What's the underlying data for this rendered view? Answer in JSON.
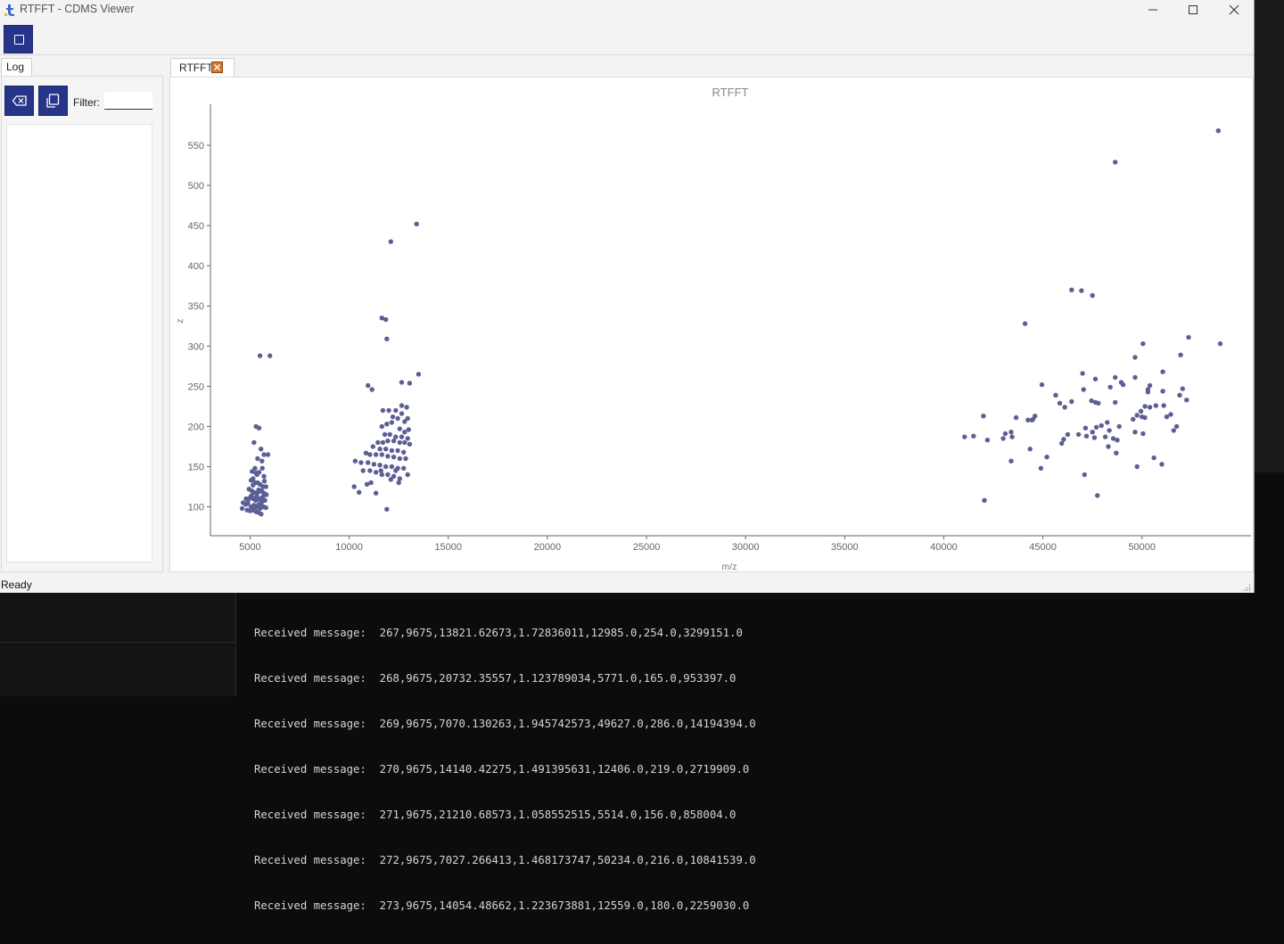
{
  "window": {
    "title": "RTFFT - CDMS Viewer"
  },
  "log": {
    "tab_label": "Log",
    "filter_label": "Filter:",
    "filter_value": ""
  },
  "plot_tab": {
    "label": "RTFFT"
  },
  "status": {
    "text": "Ready"
  },
  "terminal": {
    "lines": [
      "Received message:  267,9675,13821.62673,1.72836011,12985.0,254.0,3299151.0",
      "Received message:  268,9675,20732.35557,1.123789034,5771.0,165.0,953397.0",
      "Received message:  269,9675,7070.130263,1.945742573,49627.0,286.0,14194394.0",
      "Received message:  270,9675,14140.42275,1.491395631,12406.0,219.0,2719909.0",
      "Received message:  271,9675,21210.68573,1.058552515,5514.0,156.0,858004.0",
      "Received message:  272,9675,7027.266413,1.468173747,50234.0,216.0,10841539.0",
      "Received message:  273,9675,14054.48662,1.223673881,12559.0,180.0,2259030.0"
    ]
  },
  "colors": {
    "accent": "#26358a",
    "point": "#5c5f94",
    "close_button": "#d9762b"
  },
  "chart_data": {
    "type": "scatter",
    "title": "RTFFT",
    "xlabel": "m/z",
    "ylabel": "z",
    "xlim": [
      3000,
      55500
    ],
    "ylim": [
      64,
      601
    ],
    "xticks": [
      5000,
      10000,
      15000,
      20000,
      25000,
      30000,
      35000,
      40000,
      45000,
      50000
    ],
    "yticks": [
      100,
      150,
      200,
      250,
      300,
      350,
      400,
      450,
      500,
      550
    ],
    "grid": false,
    "points": [
      [
        5500,
        288
      ],
      [
        6000,
        288
      ],
      [
        5300,
        200
      ],
      [
        5450,
        198
      ],
      [
        5200,
        180
      ],
      [
        5550,
        172
      ],
      [
        5700,
        165
      ],
      [
        5900,
        165
      ],
      [
        5380,
        160
      ],
      [
        5600,
        157
      ],
      [
        5250,
        148
      ],
      [
        5100,
        144
      ],
      [
        5450,
        143
      ],
      [
        5350,
        140
      ],
      [
        5700,
        138
      ],
      [
        5050,
        133
      ],
      [
        5150,
        135
      ],
      [
        5250,
        130
      ],
      [
        5500,
        128
      ],
      [
        5650,
        125
      ],
      [
        5800,
        125
      ],
      [
        4950,
        122
      ],
      [
        5080,
        120
      ],
      [
        5200,
        118
      ],
      [
        5350,
        117
      ],
      [
        5480,
        119
      ],
      [
        5580,
        120
      ],
      [
        5700,
        117
      ],
      [
        5820,
        115
      ],
      [
        4800,
        110
      ],
      [
        4900,
        108
      ],
      [
        5020,
        112
      ],
      [
        5150,
        110
      ],
      [
        5280,
        108
      ],
      [
        5400,
        109
      ],
      [
        5520,
        110
      ],
      [
        5630,
        112
      ],
      [
        5750,
        108
      ],
      [
        4650,
        105
      ],
      [
        4780,
        103
      ],
      [
        4890,
        104
      ],
      [
        5050,
        100
      ],
      [
        5200,
        102
      ],
      [
        5330,
        101
      ],
      [
        5450,
        103
      ],
      [
        5560,
        104
      ],
      [
        5680,
        100
      ],
      [
        5800,
        99
      ],
      [
        4600,
        98
      ],
      [
        4850,
        96
      ],
      [
        5000,
        95
      ],
      [
        5150,
        96
      ],
      [
        5300,
        94
      ],
      [
        5420,
        93
      ],
      [
        5560,
        91
      ],
      [
        5300,
        142
      ],
      [
        5380,
        130
      ],
      [
        5150,
        127
      ],
      [
        5620,
        148
      ],
      [
        5720,
        132
      ],
      [
        5430,
        121
      ],
      [
        5080,
        114
      ],
      [
        5340,
        113
      ],
      [
        5610,
        107
      ],
      [
        5260,
        97
      ],
      [
        5510,
        98
      ],
      [
        13400,
        452
      ],
      [
        12100,
        430
      ],
      [
        11650,
        335
      ],
      [
        11850,
        333
      ],
      [
        11900,
        309
      ],
      [
        13500,
        265
      ],
      [
        10950,
        251
      ],
      [
        11150,
        246
      ],
      [
        12650,
        255
      ],
      [
        13050,
        254
      ],
      [
        12650,
        226
      ],
      [
        12900,
        224
      ],
      [
        11700,
        220
      ],
      [
        12000,
        220
      ],
      [
        12350,
        220
      ],
      [
        12650,
        216
      ],
      [
        12200,
        212
      ],
      [
        12450,
        210
      ],
      [
        12950,
        210
      ],
      [
        12150,
        205
      ],
      [
        12800,
        206
      ],
      [
        11650,
        200
      ],
      [
        11900,
        203
      ],
      [
        12550,
        197
      ],
      [
        12800,
        193
      ],
      [
        13000,
        196
      ],
      [
        11800,
        190
      ],
      [
        12050,
        190
      ],
      [
        12350,
        187
      ],
      [
        12650,
        187
      ],
      [
        12950,
        185
      ],
      [
        11450,
        180
      ],
      [
        11700,
        180
      ],
      [
        11950,
        182
      ],
      [
        12250,
        182
      ],
      [
        12550,
        180
      ],
      [
        12800,
        180
      ],
      [
        13050,
        178
      ],
      [
        11200,
        175
      ],
      [
        11550,
        172
      ],
      [
        11850,
        172
      ],
      [
        12150,
        170
      ],
      [
        12450,
        170
      ],
      [
        12750,
        168
      ],
      [
        10850,
        167
      ],
      [
        11050,
        165
      ],
      [
        11350,
        165
      ],
      [
        11650,
        165
      ],
      [
        11950,
        163
      ],
      [
        12250,
        162
      ],
      [
        12550,
        160
      ],
      [
        12850,
        160
      ],
      [
        10300,
        157
      ],
      [
        10600,
        155
      ],
      [
        10950,
        155
      ],
      [
        11250,
        153
      ],
      [
        11550,
        152
      ],
      [
        11850,
        150
      ],
      [
        12150,
        150
      ],
      [
        12450,
        148
      ],
      [
        12750,
        148
      ],
      [
        10700,
        145
      ],
      [
        11050,
        145
      ],
      [
        11350,
        143
      ],
      [
        11650,
        140
      ],
      [
        11950,
        140
      ],
      [
        12250,
        138
      ],
      [
        12550,
        135
      ],
      [
        12950,
        140
      ],
      [
        10250,
        125
      ],
      [
        10900,
        128
      ],
      [
        11100,
        130
      ],
      [
        12100,
        134
      ],
      [
        12500,
        130
      ],
      [
        10500,
        118
      ],
      [
        11350,
        117
      ],
      [
        11900,
        97
      ],
      [
        11600,
        145
      ],
      [
        12350,
        145
      ],
      [
        53850,
        568
      ],
      [
        48650,
        529
      ],
      [
        46450,
        370
      ],
      [
        46950,
        369
      ],
      [
        47500,
        363
      ],
      [
        44100,
        328
      ],
      [
        52350,
        311
      ],
      [
        50050,
        303
      ],
      [
        53950,
        303
      ],
      [
        51950,
        289
      ],
      [
        49650,
        286
      ],
      [
        51050,
        268
      ],
      [
        47000,
        266
      ],
      [
        48650,
        261
      ],
      [
        49650,
        261
      ],
      [
        47650,
        259
      ],
      [
        50400,
        251
      ],
      [
        48400,
        249
      ],
      [
        48950,
        255
      ],
      [
        49050,
        252
      ],
      [
        44950,
        252
      ],
      [
        50300,
        246
      ],
      [
        50300,
        243
      ],
      [
        51050,
        244
      ],
      [
        52050,
        247
      ],
      [
        51900,
        239
      ],
      [
        47050,
        246
      ],
      [
        52250,
        233
      ],
      [
        45650,
        239
      ],
      [
        46450,
        231
      ],
      [
        47450,
        232
      ],
      [
        47650,
        230
      ],
      [
        47800,
        229
      ],
      [
        48650,
        230
      ],
      [
        46100,
        224
      ],
      [
        45850,
        229
      ],
      [
        49950,
        219
      ],
      [
        50150,
        225
      ],
      [
        50400,
        224
      ],
      [
        51100,
        226
      ],
      [
        50700,
        226
      ],
      [
        49750,
        214
      ],
      [
        49550,
        209
      ],
      [
        50000,
        212
      ],
      [
        50150,
        211
      ],
      [
        51250,
        212
      ],
      [
        51450,
        215
      ],
      [
        44600,
        213
      ],
      [
        43650,
        211
      ],
      [
        44250,
        208
      ],
      [
        44500,
        209
      ],
      [
        44450,
        208
      ],
      [
        48250,
        205
      ],
      [
        48850,
        200
      ],
      [
        47950,
        201
      ],
      [
        47700,
        199
      ],
      [
        47150,
        198
      ],
      [
        47500,
        193
      ],
      [
        48350,
        195
      ],
      [
        49650,
        193
      ],
      [
        50050,
        191
      ],
      [
        51750,
        200
      ],
      [
        51600,
        195
      ],
      [
        43100,
        191
      ],
      [
        43400,
        193
      ],
      [
        43450,
        187
      ],
      [
        42000,
        213
      ],
      [
        41500,
        188
      ],
      [
        41050,
        187
      ],
      [
        42200,
        183
      ],
      [
        43000,
        185
      ],
      [
        44350,
        172
      ],
      [
        46050,
        184
      ],
      [
        46250,
        190
      ],
      [
        46800,
        190
      ],
      [
        47200,
        188
      ],
      [
        47600,
        186
      ],
      [
        48150,
        187
      ],
      [
        48750,
        183
      ],
      [
        50600,
        161
      ],
      [
        48300,
        175
      ],
      [
        48700,
        167
      ],
      [
        45950,
        179
      ],
      [
        44900,
        148
      ],
      [
        45200,
        162
      ],
      [
        43400,
        157
      ],
      [
        51000,
        153
      ],
      [
        49750,
        150
      ],
      [
        47100,
        140
      ],
      [
        47750,
        114
      ],
      [
        42050,
        108
      ],
      [
        48550,
        185
      ]
    ]
  }
}
